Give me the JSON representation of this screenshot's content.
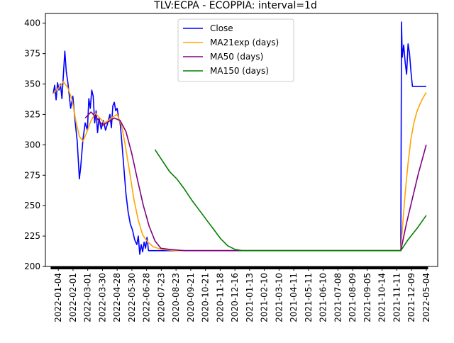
{
  "chart_data": {
    "type": "line",
    "title": "TLV:ECPA - ECOPPIA: interval=1d",
    "xlabel": "",
    "ylabel": "",
    "ylim": [
      200,
      408
    ],
    "yticks": [
      200,
      225,
      250,
      275,
      300,
      325,
      350,
      375,
      400
    ],
    "xticks": [
      "2022-01-04",
      "2022-02-01",
      "2022-03-01",
      "2022-03-30",
      "2022-04-28",
      "2022-05-30",
      "2022-06-28",
      "2020-07-23",
      "2020-08-23",
      "2020-09-21",
      "2020-10-21",
      "2020-11-18",
      "2020-12-16",
      "2021-01-13",
      "2021-02-10",
      "2021-03-10",
      "2021-04-11",
      "2021-05-11",
      "2021-06-10",
      "2021-07-08",
      "2021-08-09",
      "2021-09-05",
      "2021-10-14",
      "2021-11-11",
      "2021-12-09",
      "2022-05-04"
    ],
    "legend": "upper-center",
    "grid": false,
    "xrange": [
      0,
      26
    ],
    "series": [
      {
        "name": "Close",
        "color": "#0000ff",
        "points": [
          [
            0,
            342
          ],
          [
            0.1,
            349
          ],
          [
            0.2,
            337
          ],
          [
            0.3,
            351
          ],
          [
            0.4,
            345
          ],
          [
            0.5,
            350
          ],
          [
            0.6,
            338
          ],
          [
            0.8,
            377
          ],
          [
            0.9,
            360
          ],
          [
            1.0,
            352
          ],
          [
            1.2,
            330
          ],
          [
            1.35,
            340
          ],
          [
            1.5,
            320
          ],
          [
            1.65,
            303
          ],
          [
            1.8,
            272
          ],
          [
            1.9,
            283
          ],
          [
            2.05,
            305
          ],
          [
            2.2,
            318
          ],
          [
            2.35,
            312
          ],
          [
            2.45,
            338
          ],
          [
            2.55,
            330
          ],
          [
            2.65,
            345
          ],
          [
            2.75,
            340
          ],
          [
            2.85,
            318
          ],
          [
            2.95,
            328
          ],
          [
            3.05,
            310
          ],
          [
            3.15,
            322
          ],
          [
            3.3,
            313
          ],
          [
            3.45,
            320
          ],
          [
            3.6,
            312
          ],
          [
            3.75,
            318
          ],
          [
            3.9,
            325
          ],
          [
            4.0,
            314
          ],
          [
            4.1,
            332
          ],
          [
            4.2,
            335
          ],
          [
            4.3,
            328
          ],
          [
            4.4,
            330
          ],
          [
            4.5,
            322
          ],
          [
            4.6,
            318
          ],
          [
            4.7,
            305
          ],
          [
            4.8,
            290
          ],
          [
            4.9,
            275
          ],
          [
            5.0,
            260
          ],
          [
            5.15,
            245
          ],
          [
            5.3,
            235
          ],
          [
            5.45,
            230
          ],
          [
            5.6,
            222
          ],
          [
            5.75,
            218
          ],
          [
            5.85,
            225
          ],
          [
            5.95,
            210
          ],
          [
            6.05,
            218
          ],
          [
            6.15,
            212
          ],
          [
            6.25,
            220
          ],
          [
            6.35,
            215
          ],
          [
            6.45,
            224
          ],
          [
            6.55,
            213
          ],
          [
            6.65,
            213
          ],
          [
            7.0,
            213
          ],
          [
            22.0,
            213
          ],
          [
            23.9,
            213
          ],
          [
            23.95,
            401
          ],
          [
            24.0,
            372
          ],
          [
            24.1,
            382
          ],
          [
            24.2,
            368
          ],
          [
            24.3,
            358
          ],
          [
            24.4,
            383
          ],
          [
            24.5,
            375
          ],
          [
            24.6,
            360
          ],
          [
            24.7,
            348
          ],
          [
            25.0,
            348
          ],
          [
            25.5,
            348
          ],
          [
            25.65,
            348
          ]
        ]
      },
      {
        "name": "MA21exp (days)",
        "color": "#ffa500",
        "points": [
          [
            0,
            342
          ],
          [
            0.2,
            345
          ],
          [
            0.4,
            347
          ],
          [
            0.7,
            352
          ],
          [
            1.0,
            347
          ],
          [
            1.3,
            337
          ],
          [
            1.55,
            320
          ],
          [
            1.8,
            307
          ],
          [
            2.05,
            303
          ],
          [
            2.3,
            310
          ],
          [
            2.6,
            320
          ],
          [
            2.9,
            326
          ],
          [
            3.2,
            322
          ],
          [
            3.5,
            318
          ],
          [
            3.8,
            320
          ],
          [
            4.1,
            323
          ],
          [
            4.4,
            325
          ],
          [
            4.7,
            316
          ],
          [
            4.95,
            300
          ],
          [
            5.25,
            278
          ],
          [
            5.55,
            255
          ],
          [
            5.85,
            238
          ],
          [
            6.15,
            226
          ],
          [
            6.5,
            220
          ],
          [
            6.9,
            216
          ],
          [
            7.5,
            214
          ],
          [
            8.5,
            213
          ],
          [
            10,
            213
          ],
          [
            23.9,
            213
          ],
          [
            24.0,
            230
          ],
          [
            24.2,
            260
          ],
          [
            24.4,
            285
          ],
          [
            24.6,
            305
          ],
          [
            24.8,
            318
          ],
          [
            25.0,
            327
          ],
          [
            25.2,
            333
          ],
          [
            25.4,
            338
          ],
          [
            25.65,
            343
          ]
        ]
      },
      {
        "name": "MA50 (days)",
        "color": "#800080",
        "points": [
          [
            2.2,
            322
          ],
          [
            2.6,
            327
          ],
          [
            3.0,
            322
          ],
          [
            3.4,
            316
          ],
          [
            3.8,
            319
          ],
          [
            4.2,
            322
          ],
          [
            4.6,
            320
          ],
          [
            5.0,
            311
          ],
          [
            5.4,
            293
          ],
          [
            5.8,
            271
          ],
          [
            6.2,
            250
          ],
          [
            6.6,
            233
          ],
          [
            7.0,
            221
          ],
          [
            7.4,
            215
          ],
          [
            8.0,
            214
          ],
          [
            9.0,
            213
          ],
          [
            12,
            213
          ],
          [
            23.9,
            213
          ],
          [
            24.3,
            236
          ],
          [
            24.7,
            256
          ],
          [
            25.1,
            276
          ],
          [
            25.65,
            300
          ]
        ]
      },
      {
        "name": "MA150 (days)",
        "color": "#008000",
        "points": [
          [
            7.0,
            296
          ],
          [
            7.5,
            287
          ],
          [
            8.0,
            278
          ],
          [
            8.5,
            272
          ],
          [
            9.0,
            264
          ],
          [
            9.5,
            255
          ],
          [
            10.0,
            247
          ],
          [
            10.5,
            239
          ],
          [
            11.0,
            231
          ],
          [
            11.5,
            223
          ],
          [
            12.0,
            217
          ],
          [
            12.5,
            214
          ],
          [
            13.0,
            213
          ],
          [
            14,
            213
          ],
          [
            23.9,
            213
          ],
          [
            24.4,
            222
          ],
          [
            25.0,
            231
          ],
          [
            25.65,
            242
          ]
        ]
      }
    ]
  }
}
